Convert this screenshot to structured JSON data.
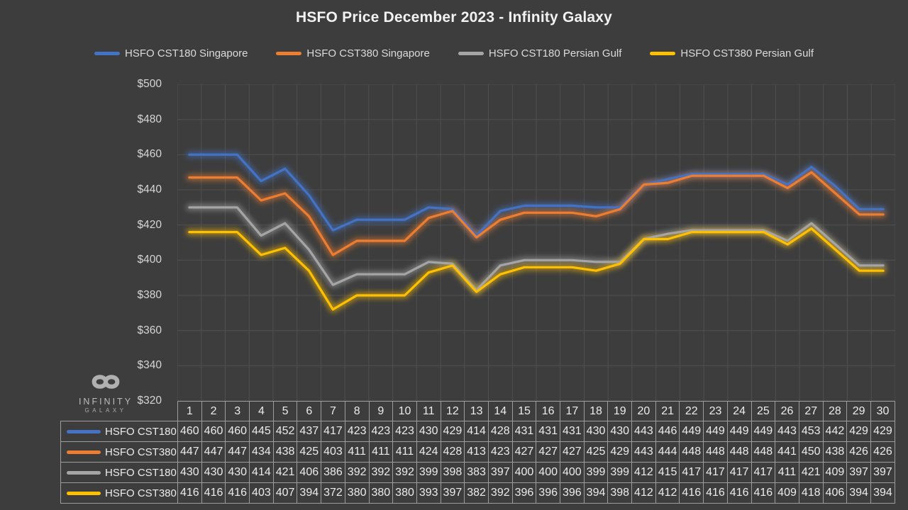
{
  "title": "HSFO Price December 2023 - Infinity Galaxy",
  "logo": {
    "name": "Infinity Galaxy",
    "line1": "INFINITY",
    "line2": "GALAXY",
    "symbol": "infinity-icon",
    "color": "#B0B0B0"
  },
  "colors": {
    "background": "#3D3D3D",
    "gridline": "#505050",
    "table_border": "#9C9C9C",
    "title_text": "#F2F2F2",
    "axis_text": "#D6D6D6",
    "table_text": "#ECECEC"
  },
  "chart_data": {
    "type": "line",
    "title": "HSFO Price December 2023 - Infinity Galaxy",
    "categories": [
      1,
      2,
      3,
      4,
      5,
      6,
      7,
      8,
      9,
      10,
      11,
      12,
      13,
      14,
      15,
      16,
      17,
      18,
      19,
      20,
      21,
      22,
      23,
      24,
      25,
      26,
      27,
      28,
      29,
      30
    ],
    "series": [
      {
        "name": "HSFO CST180 Singapore",
        "color": "#4472C4",
        "values": [
          460,
          460,
          460,
          445,
          452,
          437,
          417,
          423,
          423,
          423,
          430,
          429,
          414,
          428,
          431,
          431,
          431,
          430,
          430,
          443,
          446,
          449,
          449,
          449,
          449,
          443,
          453,
          442,
          429,
          429
        ]
      },
      {
        "name": "HSFO CST380 Singapore",
        "color": "#ED7D31",
        "values": [
          447,
          447,
          447,
          434,
          438,
          425,
          403,
          411,
          411,
          411,
          424,
          428,
          413,
          423,
          427,
          427,
          427,
          425,
          429,
          443,
          444,
          448,
          448,
          448,
          448,
          441,
          450,
          438,
          426,
          426
        ]
      },
      {
        "name": "HSFO CST180 Persian Gulf",
        "color": "#A5A5A5",
        "values": [
          430,
          430,
          430,
          414,
          421,
          406,
          386,
          392,
          392,
          392,
          399,
          398,
          383,
          397,
          400,
          400,
          400,
          399,
          399,
          412,
          415,
          417,
          417,
          417,
          417,
          411,
          421,
          409,
          397,
          397
        ]
      },
      {
        "name": "HSFO CST380 Persian Gulf",
        "color": "#FFC000",
        "values": [
          416,
          416,
          416,
          403,
          407,
          394,
          372,
          380,
          380,
          380,
          393,
          397,
          382,
          392,
          396,
          396,
          396,
          394,
          398,
          412,
          412,
          416,
          416,
          416,
          416,
          409,
          418,
          406,
          394,
          394
        ]
      }
    ],
    "ylim": [
      320,
      500
    ],
    "ytick_step": 20,
    "ytick_prefix": "$",
    "yticks": [
      "$320",
      "$340",
      "$360",
      "$380",
      "$400",
      "$420",
      "$440",
      "$460",
      "$480",
      "$500"
    ],
    "grid": true,
    "legend_position": "top",
    "has_data_table": true
  }
}
